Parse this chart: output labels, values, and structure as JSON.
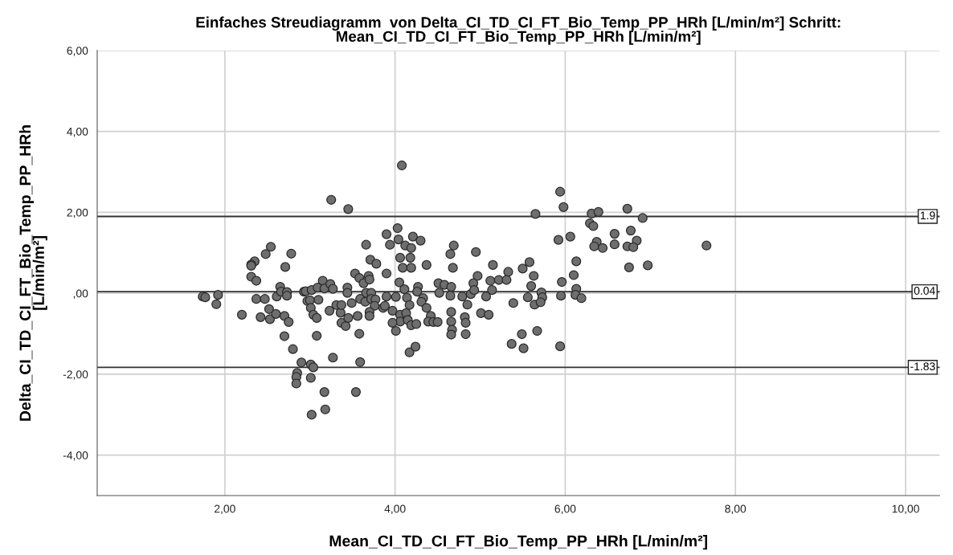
{
  "chart_data": {
    "type": "scatter",
    "title": "Einfaches Streudiagramm  von Delta_CI_TD_CI_FT_Bio_Temp_PP_HRh [L/min/m²] Schritt:\nMean_CI_TD_CI_FT_Bio_Temp_PP_HRh [L/min/m²]",
    "xlabel": "Mean_CI_TD_CI_FT_Bio_Temp_PP_HRh [L/min/m²]",
    "ylabel": "Delta_CI_TD_CI_FT_Bio_Temp_PP_HRh\n[L/min/m²]",
    "xlim": [
      0.5,
      10.4
    ],
    "ylim": [
      -5,
      6
    ],
    "xticks": [
      {
        "value": 2,
        "label": "2,00"
      },
      {
        "value": 4,
        "label": "4,00"
      },
      {
        "value": 6,
        "label": "6,00"
      },
      {
        "value": 8,
        "label": "8,00"
      },
      {
        "value": 10,
        "label": "10,00"
      }
    ],
    "yticks": [
      {
        "value": -4,
        "label": "-4,00"
      },
      {
        "value": -2,
        "label": "-2,00"
      },
      {
        "value": 0,
        "label": ",00"
      },
      {
        "value": 2,
        "label": "2,00"
      },
      {
        "value": 4,
        "label": "4,00"
      },
      {
        "value": 6,
        "label": "6,00"
      }
    ],
    "grid": true,
    "marker": "circle",
    "ref_lines": [
      {
        "axis": "y",
        "value": 1.9,
        "label": "1.9",
        "color": "#333333"
      },
      {
        "axis": "y",
        "value": 0.04,
        "label": "0.04",
        "color": "#333333"
      },
      {
        "axis": "y",
        "value": -1.83,
        "label": "-1.83",
        "color": "#333333"
      }
    ],
    "series": [
      {
        "color": "#6e6e6e",
        "x": [
          1.74,
          1.77,
          1.92,
          1.9,
          2.2,
          2.54,
          2.48,
          2.78,
          2.35,
          2.31,
          2.31,
          2.71,
          2.31,
          2.37,
          2.65,
          2.37,
          2.47,
          2.61,
          2.66,
          2.73,
          2.73,
          2.52,
          2.42,
          2.53,
          2.6,
          2.7,
          2.75,
          2.7,
          2.8,
          2.9,
          3.01,
          3.04,
          2.85,
          2.84,
          2.84,
          3.01,
          3.02,
          2.93,
          2.95,
          3.02,
          2.97,
          3.0,
          3.01,
          3.04,
          4.08,
          3.25,
          3.45,
          4.03,
          3.9,
          4.04,
          3.94,
          3.66,
          4.21,
          4.3,
          4.12,
          4.19,
          4.06,
          4.18,
          4.09,
          4.19,
          4.37,
          3.71,
          3.78,
          3.9,
          3.53,
          3.58,
          3.69,
          3.63,
          3.7,
          4.05,
          3.15,
          3.09,
          3.17,
          3.24,
          3.27,
          3.44,
          3.44,
          3.66,
          3.72,
          3.9,
          4.01,
          4.11,
          4.14,
          4.27,
          4.26,
          4.33,
          4.31,
          4.51,
          4.52,
          3.1,
          3.31,
          3.23,
          3.36,
          3.37,
          3.49,
          3.59,
          3.65,
          3.72,
          3.77,
          3.76,
          3.86,
          3.88,
          3.97,
          3.7,
          3.08,
          3.37,
          3.42,
          3.45,
          3.56,
          3.7,
          4.06,
          4.06,
          3.97,
          4.01,
          4.13,
          4.17,
          4.15,
          4.19,
          4.25,
          4.37,
          4.42,
          4.39,
          4.45,
          4.5,
          3.08,
          3.58,
          4.17,
          4.24,
          3.27,
          3.59,
          3.17,
          3.54,
          3.18,
          4.69,
          4.65,
          4.68,
          4.95,
          5.15,
          5.33,
          5.5,
          5.58,
          5.63,
          5.6,
          4.97,
          4.92,
          5.12,
          5.22,
          5.31,
          5.14,
          4.58,
          4.66,
          4.65,
          4.79,
          4.85,
          4.89,
          4.93,
          5.07,
          5.39,
          5.56,
          5.64,
          5.72,
          5.73,
          5.71,
          4.66,
          4.66,
          4.67,
          4.66,
          4.82,
          4.83,
          4.83,
          5.01,
          5.1,
          5.49,
          5.67,
          5.37,
          5.51,
          5.94,
          5.94,
          5.98,
          5.65,
          5.92,
          6.06,
          5.96,
          5.95,
          6.13,
          6.1,
          6.13,
          6.12,
          6.19,
          6.31,
          6.39,
          6.73,
          6.91,
          6.29,
          6.33,
          6.58,
          6.77,
          6.84,
          6.37,
          6.34,
          6.44,
          6.58,
          6.73,
          6.8,
          6.75,
          6.97,
          7.66
        ],
        "values": [
          -0.08,
          -0.1,
          -0.04,
          -0.27,
          -0.53,
          1.15,
          0.97,
          0.98,
          0.79,
          0.71,
          0.68,
          0.65,
          0.41,
          0.31,
          0.16,
          -0.14,
          -0.14,
          -0.08,
          0.04,
          0.03,
          -0.06,
          -0.39,
          -0.59,
          -0.64,
          -0.51,
          -0.56,
          -0.71,
          -1.06,
          -1.38,
          -1.71,
          -1.76,
          -1.83,
          -1.97,
          -2.07,
          -2.23,
          -2.09,
          -3.0,
          0.04,
          0.05,
          0.08,
          -0.19,
          -0.17,
          -0.36,
          -0.53,
          3.16,
          2.31,
          2.08,
          1.61,
          1.46,
          1.33,
          1.2,
          1.2,
          1.4,
          1.3,
          1.18,
          1.12,
          0.88,
          0.88,
          0.63,
          0.63,
          0.7,
          0.83,
          0.73,
          0.49,
          0.49,
          0.38,
          0.43,
          0.25,
          0.34,
          0.27,
          0.31,
          0.14,
          0.12,
          0.23,
          0.11,
          0.14,
          0.01,
          0.01,
          0.01,
          -0.08,
          -0.09,
          0.1,
          -0.11,
          0.16,
          0.04,
          -0.12,
          -0.21,
          0.25,
          0.01,
          -0.16,
          -0.29,
          -0.43,
          -0.48,
          -0.29,
          -0.24,
          -0.14,
          -0.21,
          -0.14,
          -0.15,
          -0.31,
          -0.36,
          -0.31,
          -0.43,
          -0.46,
          -0.61,
          -0.73,
          -0.81,
          -0.61,
          -0.56,
          -0.56,
          -0.53,
          -0.7,
          -0.73,
          -0.93,
          -0.49,
          -0.29,
          -0.66,
          -0.79,
          -0.76,
          -0.36,
          -0.56,
          -0.7,
          -0.71,
          -0.71,
          -1.05,
          -1.0,
          -1.46,
          -1.32,
          -1.59,
          -1.7,
          -2.44,
          -2.44,
          -2.87,
          1.18,
          0.97,
          0.63,
          1.02,
          0.7,
          0.53,
          0.61,
          0.77,
          0.43,
          0.18,
          0.43,
          0.25,
          0.31,
          0.33,
          0.33,
          0.08,
          0.21,
          0.16,
          -0.06,
          -0.08,
          -0.28,
          -0.02,
          0.08,
          -0.08,
          -0.24,
          -0.1,
          -0.28,
          0.02,
          -0.1,
          -0.22,
          -0.46,
          -0.7,
          -0.9,
          -1.02,
          -0.59,
          -0.73,
          -1.01,
          -0.49,
          -0.53,
          -1.01,
          -0.93,
          -1.25,
          -1.36,
          -1.31,
          2.51,
          2.13,
          1.96,
          1.32,
          1.4,
          0.28,
          -0.06,
          0.79,
          0.45,
          0.11,
          -0.04,
          -0.12,
          1.97,
          2.01,
          2.09,
          1.86,
          1.73,
          1.66,
          1.47,
          1.55,
          1.3,
          1.27,
          1.16,
          1.12,
          1.21,
          1.16,
          1.14,
          0.64,
          0.69,
          1.18
        ]
      }
    ]
  }
}
